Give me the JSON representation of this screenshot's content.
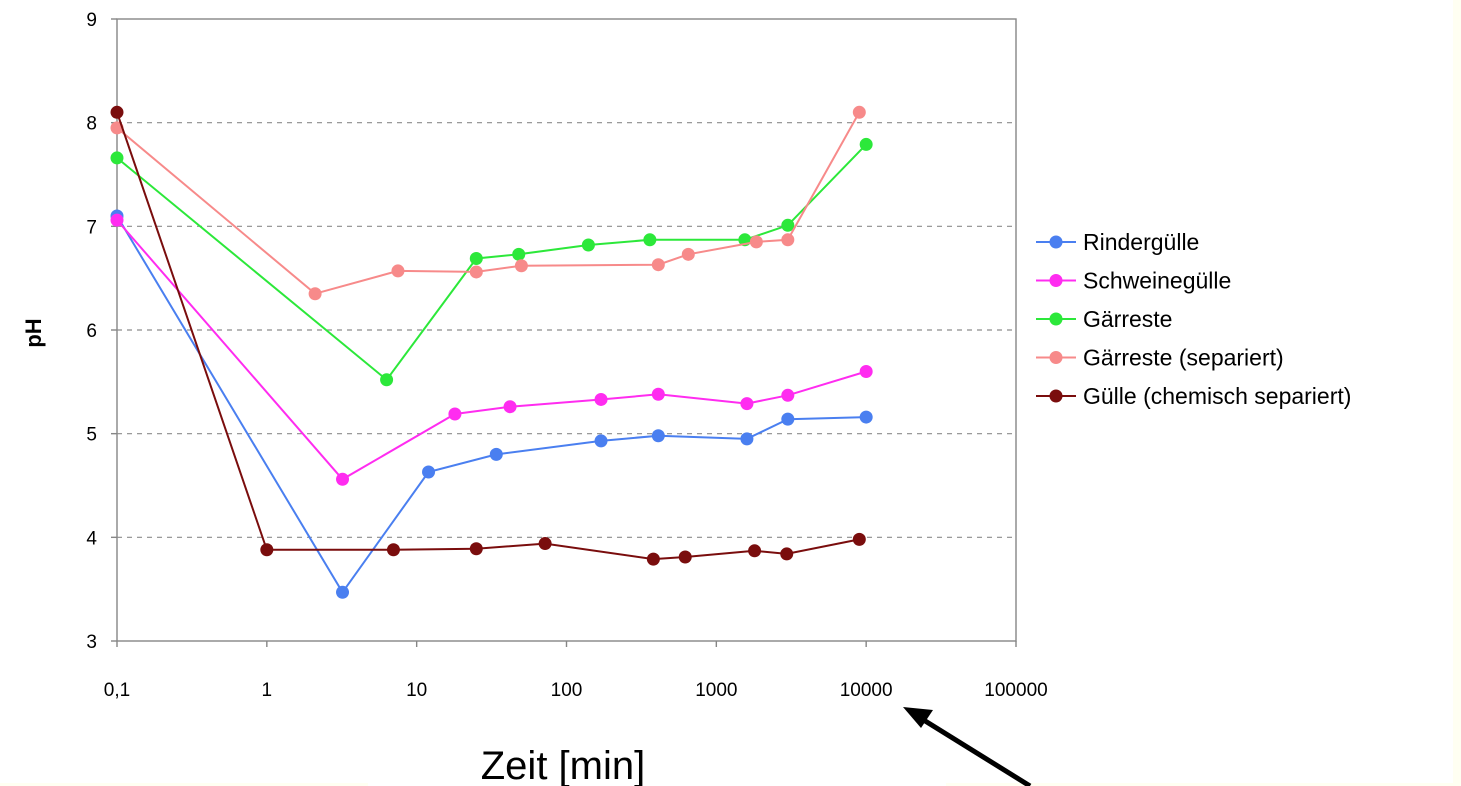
{
  "chart_data": {
    "type": "line",
    "title": "",
    "xlabel": "Zeit [min]",
    "ylabel": "pH",
    "x_scale": "log",
    "xlim": [
      0.1,
      100000
    ],
    "ylim": [
      3,
      9
    ],
    "x_ticks": [
      0.1,
      1,
      10,
      100,
      1000,
      10000,
      100000
    ],
    "x_tick_labels": [
      "0,1",
      "1",
      "10",
      "100",
      "1000",
      "10000",
      "100000"
    ],
    "y_ticks": [
      3,
      4,
      5,
      6,
      7,
      8,
      9
    ],
    "y_tick_labels": [
      "3",
      "4",
      "5",
      "6",
      "7",
      "8",
      "9"
    ],
    "grid": "horizontal dashed",
    "legend_position": "right",
    "series": [
      {
        "name": "Rindergülle",
        "color": "#4a7ff0",
        "points": [
          [
            0.1,
            7.1
          ],
          [
            3.2,
            3.47
          ],
          [
            12,
            4.63
          ],
          [
            34,
            4.8
          ],
          [
            170,
            4.93
          ],
          [
            410,
            4.98
          ],
          [
            1600,
            4.95
          ],
          [
            3000,
            5.14
          ],
          [
            10000,
            5.16
          ]
        ]
      },
      {
        "name": "Schweinegülle",
        "color": "#ff2cf0",
        "points": [
          [
            0.1,
            7.06
          ],
          [
            3.2,
            4.56
          ],
          [
            18,
            5.19
          ],
          [
            42,
            5.26
          ],
          [
            170,
            5.33
          ],
          [
            410,
            5.38
          ],
          [
            1600,
            5.29
          ],
          [
            3000,
            5.37
          ],
          [
            10000,
            5.6
          ]
        ]
      },
      {
        "name": "Gärreste",
        "color": "#2ce83a",
        "points": [
          [
            0.1,
            7.66
          ],
          [
            6.3,
            5.52
          ],
          [
            25,
            6.69
          ],
          [
            48,
            6.73
          ],
          [
            140,
            6.82
          ],
          [
            360,
            6.87
          ],
          [
            1550,
            6.87
          ],
          [
            3000,
            7.01
          ],
          [
            10000,
            7.79
          ]
        ]
      },
      {
        "name": "Gärreste (separiert)",
        "color": "#f78a8a",
        "points": [
          [
            0.1,
            7.95
          ],
          [
            2.1,
            6.35
          ],
          [
            7.5,
            6.57
          ],
          [
            25,
            6.56
          ],
          [
            50,
            6.62
          ],
          [
            410,
            6.63
          ],
          [
            650,
            6.73
          ],
          [
            1850,
            6.85
          ],
          [
            3000,
            6.87
          ],
          [
            9000,
            8.1
          ]
        ]
      },
      {
        "name": "Gülle (chemisch separiert)",
        "color": "#7a0d0d",
        "points": [
          [
            0.1,
            8.1
          ],
          [
            1,
            3.88
          ],
          [
            7,
            3.88
          ],
          [
            25,
            3.89
          ],
          [
            72,
            3.94
          ],
          [
            380,
            3.79
          ],
          [
            620,
            3.81
          ],
          [
            1800,
            3.87
          ],
          [
            2950,
            3.84
          ],
          [
            9000,
            3.98
          ]
        ]
      }
    ]
  }
}
